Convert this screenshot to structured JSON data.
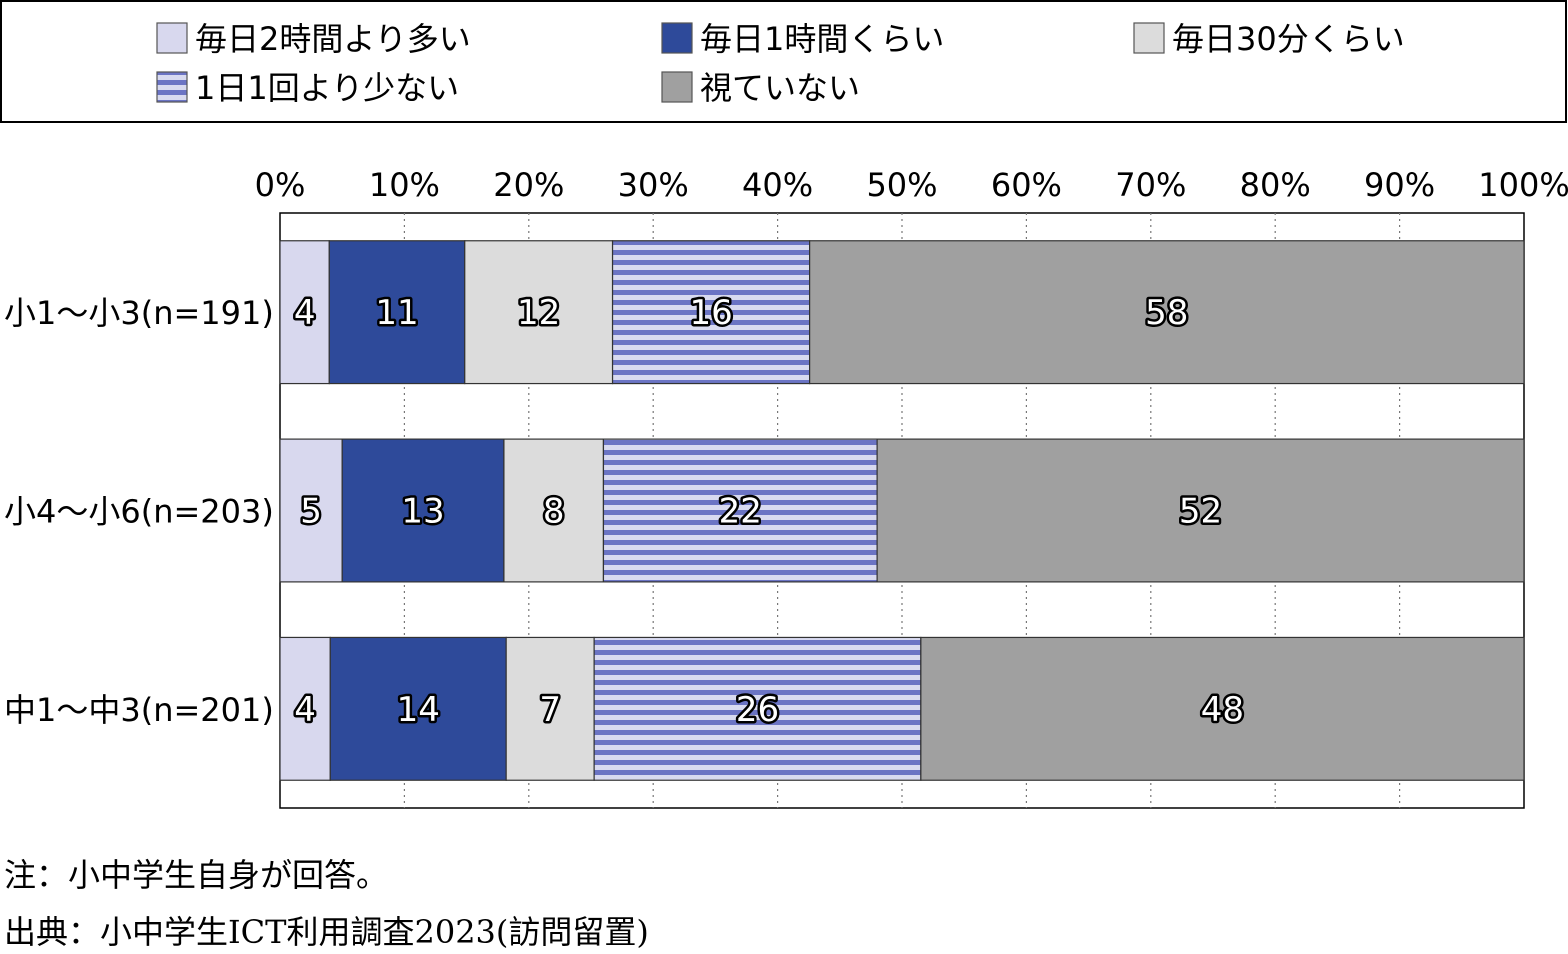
{
  "chart_data": {
    "type": "bar",
    "orientation": "horizontal",
    "stacked": true,
    "categories": [
      "小1～小3(n=191)",
      "小4～小6(n=203)",
      "中1～中3(n=201)"
    ],
    "series": [
      {
        "name": "毎日2時間より多い",
        "values": [
          4,
          5,
          4
        ],
        "color": "#d8d8ee",
        "pattern": "solid"
      },
      {
        "name": "毎日1時間くらい",
        "values": [
          11,
          13,
          14
        ],
        "color": "#2e4a9a",
        "pattern": "solid"
      },
      {
        "name": "毎日30分くらい",
        "values": [
          12,
          8,
          7
        ],
        "color": "#dcdcdc",
        "pattern": "solid"
      },
      {
        "name": "1日1回より少ない",
        "values": [
          16,
          22,
          26
        ],
        "color": "#6b74c4",
        "stripe_color": "#d8daf0",
        "pattern": "horizontal-stripes"
      },
      {
        "name": "視ていない",
        "values": [
          58,
          52,
          48
        ],
        "color": "#a0a0a0",
        "pattern": "solid"
      }
    ],
    "xlim": [
      0,
      100
    ],
    "x_ticks": [
      "0%",
      "10%",
      "20%",
      "30%",
      "40%",
      "50%",
      "60%",
      "70%",
      "80%",
      "90%",
      "100%"
    ],
    "grid": "vertical-dotted",
    "legend_position": "top"
  },
  "notes": {
    "note": "注：小中学生自身が回答。",
    "source": "出典：小中学生ICT利用調査2023(訪問留置)"
  }
}
